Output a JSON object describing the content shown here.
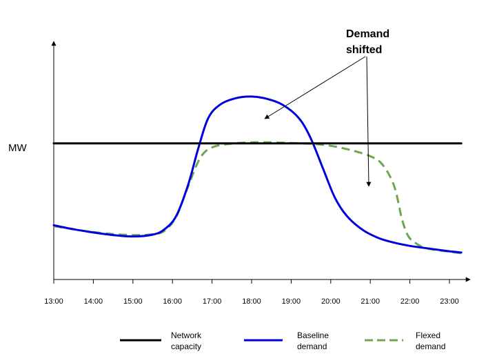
{
  "chart_data": {
    "type": "line",
    "ylabel": "MW",
    "xlim": [
      13.0,
      23.3
    ],
    "ylim": [
      0,
      100
    ],
    "x_ticks": [
      "13:00",
      "14:00",
      "15:00",
      "16:00",
      "17:00",
      "18:00",
      "19:00",
      "20:00",
      "21:00",
      "22:00",
      "23:00"
    ],
    "grid": false,
    "legend_position": "bottom",
    "annotation": {
      "lines": [
        "Demand",
        "shifted"
      ]
    },
    "series": [
      {
        "name": "Network capacity",
        "color": "#000000",
        "style": "solid",
        "x": [
          13.0,
          23.3
        ],
        "y": [
          68,
          68
        ]
      },
      {
        "name": "Baseline demand",
        "color": "#0000dd",
        "style": "solid",
        "x": [
          13.0,
          13.5,
          14.0,
          14.5,
          15.0,
          15.5,
          15.8,
          16.1,
          16.4,
          16.65,
          16.9,
          17.2,
          17.6,
          18.0,
          18.4,
          18.8,
          19.2,
          19.5,
          19.8,
          20.1,
          20.4,
          20.8,
          21.2,
          21.6,
          22.0,
          22.5,
          23.0,
          23.3
        ],
        "y": [
          27.1,
          25.1,
          23.5,
          22.2,
          21.5,
          22.4,
          25.1,
          31.9,
          47.6,
          65.3,
          80.5,
          87.3,
          90.6,
          91.4,
          90.2,
          87.1,
          80.5,
          70.3,
          55.7,
          41.1,
          31.9,
          24.9,
          20.8,
          18.4,
          16.8,
          15.4,
          14.1,
          13.5
        ]
      },
      {
        "name": "Flexed demand",
        "color": "#6aa84f",
        "style": "dashed",
        "x": [
          13.0,
          13.5,
          14.0,
          14.5,
          15.0,
          15.5,
          15.8,
          16.1,
          16.4,
          16.7,
          17.0,
          17.5,
          18.0,
          18.5,
          19.0,
          19.5,
          20.0,
          20.5,
          21.0,
          21.3,
          21.6,
          21.8,
          21.95,
          22.1,
          22.3,
          22.6,
          23.0,
          23.3
        ],
        "y": [
          26.7,
          25.1,
          23.7,
          22.7,
          22.2,
          22.6,
          24.3,
          31.6,
          46.8,
          60.7,
          66.0,
          67.9,
          68.5,
          68.5,
          68.2,
          67.8,
          66.8,
          64.7,
          61.6,
          57.6,
          46.9,
          30.2,
          22.0,
          18.9,
          16.4,
          14.9,
          13.9,
          13.1
        ]
      }
    ]
  }
}
